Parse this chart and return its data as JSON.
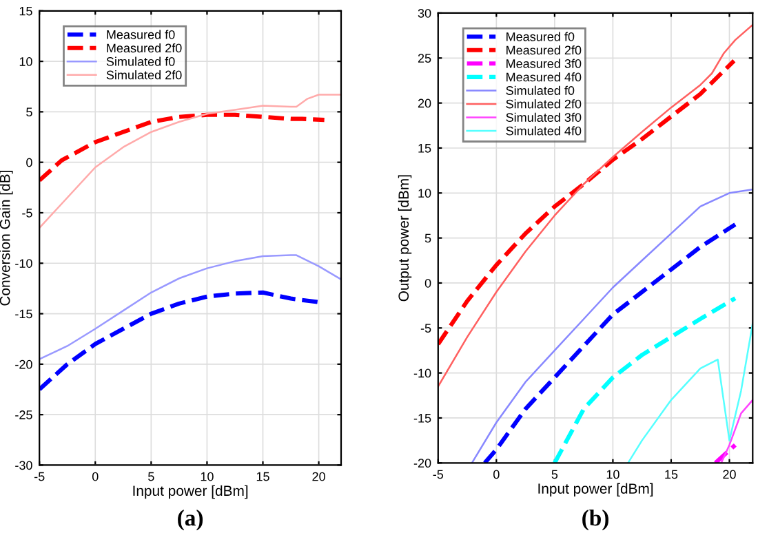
{
  "chart_data": [
    {
      "type": "line",
      "xlabel": "Input power [dBm]",
      "ylabel": "Conversion Gain [dB]",
      "xlim": [
        -5,
        22
      ],
      "ylim": [
        -30,
        15
      ],
      "xticks": [
        -5,
        0,
        5,
        10,
        15,
        20
      ],
      "yticks": [
        -30,
        -25,
        -20,
        -15,
        -10,
        -5,
        0,
        5,
        10,
        15
      ],
      "grid": true,
      "legend": "top left",
      "annotations": [
        "(a)"
      ],
      "series": [
        {
          "name": "Measured f0",
          "color": "#0000ff",
          "line_style": "dashed",
          "x": [
            -5,
            -2.5,
            0,
            2.5,
            5,
            7.5,
            10,
            12.5,
            15,
            17.5,
            20.3
          ],
          "values": [
            -22.5,
            -20,
            -18,
            -16.5,
            -15,
            -14,
            -13.3,
            -13,
            -12.9,
            -13.5,
            -13.9
          ]
        },
        {
          "name": "Measured 2f0",
          "color": "#ff0000",
          "line_style": "dashed",
          "x": [
            -5,
            -3,
            -2,
            0,
            2.5,
            5,
            7.5,
            10,
            12.5,
            15,
            17.5,
            18.5,
            20.5
          ],
          "values": [
            -1.8,
            0.2,
            0.8,
            2,
            3,
            4,
            4.5,
            4.7,
            4.7,
            4.5,
            4.3,
            4.3,
            4.2
          ]
        },
        {
          "name": "Simulated f0",
          "color": "#9999ff",
          "line_style": "solid",
          "x": [
            -5,
            -2.5,
            0,
            2.5,
            5,
            7.5,
            10,
            12.5,
            15,
            17.5,
            18,
            20,
            22
          ],
          "values": [
            -19.5,
            -18.2,
            -16.5,
            -14.7,
            -12.9,
            -11.5,
            -10.5,
            -9.8,
            -9.3,
            -9.2,
            -9.2,
            -10.3,
            -11.6
          ]
        },
        {
          "name": "Simulated 2f0",
          "color": "#ffaaaa",
          "line_style": "solid",
          "x": [
            -5,
            -2.5,
            0,
            2.5,
            5,
            7.5,
            10,
            12.5,
            15,
            17.5,
            18,
            19,
            20,
            22
          ],
          "values": [
            -6.5,
            -3.5,
            -0.5,
            1.5,
            3,
            4,
            4.8,
            5.2,
            5.6,
            5.5,
            5.5,
            6.3,
            6.7,
            6.7
          ]
        }
      ]
    },
    {
      "type": "line",
      "xlabel": "Input power [dBm]",
      "ylabel": "Output power [dBm]",
      "xlim": [
        -5,
        22
      ],
      "ylim": [
        -20,
        30
      ],
      "xticks": [
        -5,
        0,
        5,
        10,
        15,
        20
      ],
      "yticks": [
        -20,
        -15,
        -10,
        -5,
        0,
        5,
        10,
        15,
        20,
        25,
        30
      ],
      "grid": true,
      "legend": "top left",
      "annotations": [
        "(b)"
      ],
      "series": [
        {
          "name": "Measured f0",
          "color": "#0000ff",
          "line_style": "dashed",
          "x": [
            -1,
            0,
            2.5,
            5,
            7.5,
            10,
            12.5,
            15,
            17.5,
            20.5
          ],
          "values": [
            -20,
            -18.5,
            -14,
            -10.5,
            -7,
            -3.5,
            -1,
            1.5,
            4,
            6.5
          ]
        },
        {
          "name": "Measured 2f0",
          "color": "#ff0000",
          "line_style": "dashed",
          "x": [
            -5,
            -2.5,
            0,
            2.5,
            5,
            7.5,
            10,
            12.5,
            15,
            17.5,
            20.4
          ],
          "values": [
            -6.8,
            -2,
            2,
            5.5,
            8.5,
            11,
            13.7,
            16,
            18.5,
            21,
            24.7
          ]
        },
        {
          "name": "Measured 3f0",
          "color": "#ff00ff",
          "line_style": "dashed",
          "x": [
            18.8,
            20.5
          ],
          "values": [
            -20,
            -18
          ]
        },
        {
          "name": "Measured 4f0",
          "color": "#00ffff",
          "line_style": "dashed",
          "x": [
            5,
            7.5,
            10,
            12.5,
            15,
            17.5,
            20.5
          ],
          "values": [
            -20,
            -14,
            -10.5,
            -8,
            -6,
            -4,
            -1.7
          ]
        },
        {
          "name": "Simulated f0",
          "color": "#8888ff",
          "line_style": "solid",
          "x": [
            -2.1,
            0,
            2.5,
            5,
            7.5,
            10,
            12.5,
            15,
            17.5,
            20,
            22
          ],
          "values": [
            -20,
            -15.5,
            -11,
            -7.5,
            -4,
            -0.5,
            2.5,
            5.5,
            8.5,
            10,
            10.4
          ]
        },
        {
          "name": "Simulated 2f0",
          "color": "#ff6060",
          "line_style": "solid",
          "x": [
            -5,
            -2.5,
            0,
            2.5,
            5,
            7.5,
            10,
            12.5,
            15,
            17.5,
            18.5,
            19.5,
            20.5,
            22
          ],
          "values": [
            -11.5,
            -6,
            -1,
            3.5,
            7.5,
            11,
            14,
            16.8,
            19.5,
            22,
            23.3,
            25.5,
            27,
            28.7
          ]
        },
        {
          "name": "Simulated 3f0",
          "color": "#ff44ff",
          "line_style": "solid",
          "x": [
            19.3,
            20,
            21,
            22
          ],
          "values": [
            -20,
            -18,
            -14.5,
            -13
          ]
        },
        {
          "name": "Simulated 4f0",
          "color": "#55ffff",
          "line_style": "solid",
          "x": [
            11.3,
            12.5,
            15,
            17.5,
            19,
            20,
            21,
            22
          ],
          "values": [
            -20,
            -17.5,
            -13,
            -9.5,
            -8.5,
            -17.5,
            -12,
            -4.5
          ]
        }
      ]
    }
  ]
}
